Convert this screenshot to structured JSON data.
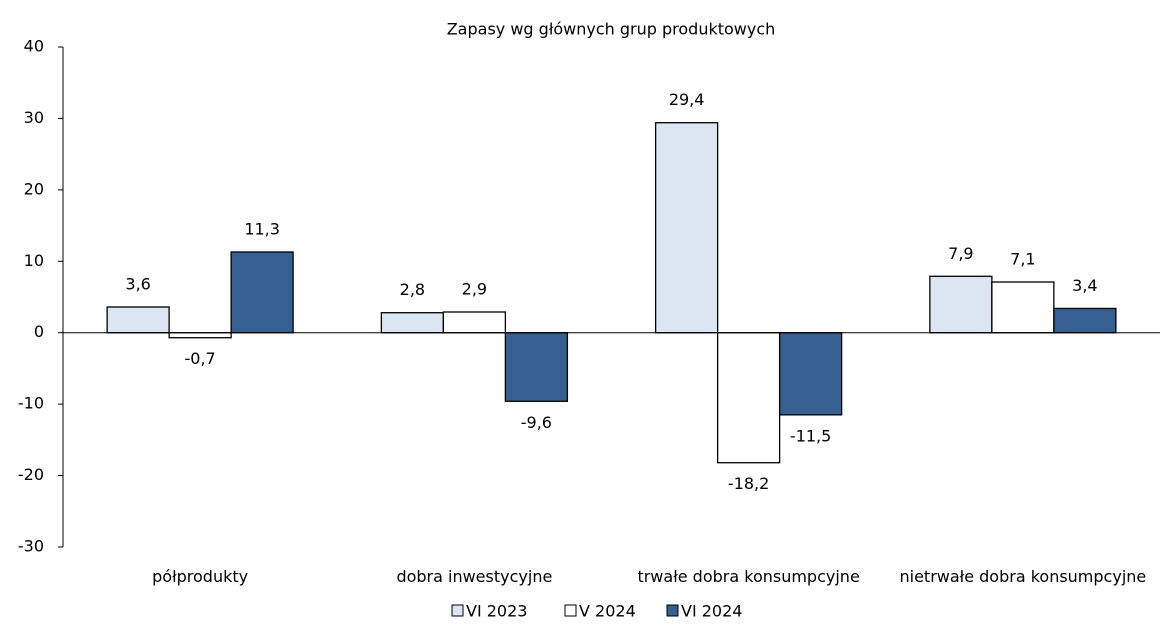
{
  "chart_data": {
    "type": "bar",
    "title": "Zapasy wg głównych grup produktowych",
    "categories": [
      "półprodukty",
      "dobra inwestycyjne",
      "trwałe dobra konsumpcyjne",
      "nietrwałe dobra konsumpcyjne"
    ],
    "series": [
      {
        "name": "VI 2023",
        "color": "#dce6f2",
        "values": [
          3.6,
          2.8,
          29.4,
          7.9
        ],
        "value_labels": [
          "3,6",
          "2,8",
          "29,4",
          "7,9"
        ]
      },
      {
        "name": "V 2024",
        "color": "#ffffff",
        "values": [
          -0.7,
          2.9,
          -18.2,
          7.1
        ],
        "value_labels": [
          "-0,7",
          "2,9",
          "-18,2",
          "7,1"
        ]
      },
      {
        "name": "VI 2024",
        "color": "#376092",
        "values": [
          11.3,
          -9.6,
          -11.5,
          3.4
        ],
        "value_labels": [
          "11,3",
          "-9,6",
          "-11,5",
          "3,4"
        ]
      }
    ],
    "ylim": [
      -30,
      40
    ],
    "yticks": [
      -30,
      -20,
      -10,
      0,
      10,
      20,
      30,
      40
    ],
    "legend": "bottom"
  }
}
